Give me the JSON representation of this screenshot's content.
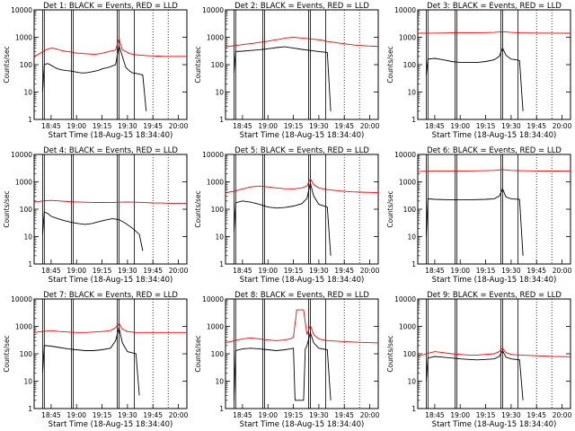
{
  "figure": {
    "ylabel": "Counts/sec",
    "ytick_labels": [
      "1",
      "10",
      "100",
      "1000",
      "10000"
    ],
    "xtick_labels_a": [
      "18:45",
      "19:00",
      "19:15",
      "19:30",
      "19:45",
      "20:00"
    ],
    "xtick_labels_b": [
      "18:45",
      "19:00",
      "19:15",
      "19:30",
      "19:45",
      "20:00"
    ],
    "xlabel": "Start Time (18-Aug-15 18:34:40)",
    "series_colors": {
      "events": "#000000",
      "lld": "#ff0000"
    }
  },
  "chart_data": [
    {
      "type": "line",
      "title": "Det 1: BLACK = Events, RED = LLD",
      "yscale": "log",
      "ylim": [
        1,
        10000
      ],
      "series": [
        {
          "color": "#ff0000",
          "x": [
            0,
            2,
            4,
            6,
            8,
            10,
            12,
            14,
            16,
            18,
            20,
            22,
            24,
            26,
            28,
            30,
            32,
            34,
            36,
            38,
            40,
            42,
            44,
            46,
            48,
            50,
            52,
            54,
            56,
            58,
            60,
            62,
            64,
            66,
            68,
            70,
            72,
            74,
            76,
            78,
            80,
            82,
            84,
            86,
            88,
            90
          ],
          "y": [
            200,
            230,
            270,
            320,
            370,
            400,
            390,
            360,
            330,
            310,
            300,
            290,
            270,
            260,
            260,
            250,
            250,
            240,
            240,
            250,
            260,
            280,
            300,
            320,
            340,
            900,
            350,
            300,
            260,
            240,
            230,
            225,
            220,
            215,
            210,
            210,
            205,
            205,
            200,
            200,
            200,
            200,
            200,
            200,
            200,
            200
          ]
        },
        {
          "color": "#000000",
          "x": [
            5,
            6,
            8,
            10,
            12,
            14,
            16,
            18,
            20,
            22,
            24,
            26,
            28,
            30,
            32,
            34,
            36,
            38,
            40,
            42,
            44,
            46,
            48,
            50,
            52,
            54,
            56,
            58,
            60,
            62,
            64,
            66
          ],
          "y": [
            10,
            100,
            110,
            95,
            80,
            70,
            65,
            62,
            60,
            58,
            55,
            52,
            50,
            50,
            52,
            55,
            58,
            62,
            70,
            75,
            80,
            90,
            100,
            500,
            200,
            80,
            60,
            50,
            48,
            45,
            42,
            2
          ]
        }
      ]
    },
    {
      "type": "line",
      "title": "Det 2: BLACK = Events, RED = LLD",
      "yscale": "log",
      "ylim": [
        1,
        10000
      ],
      "series": [
        {
          "color": "#ff0000",
          "x": [
            0,
            4,
            8,
            12,
            16,
            20,
            24,
            28,
            32,
            36,
            40,
            44,
            48,
            52,
            56,
            60,
            64,
            68,
            72,
            76,
            80,
            84,
            88,
            90
          ],
          "y": [
            450,
            480,
            520,
            560,
            600,
            650,
            700,
            780,
            850,
            950,
            1000,
            950,
            900,
            850,
            800,
            700,
            650,
            600,
            560,
            520,
            500,
            480,
            470,
            460
          ]
        },
        {
          "color": "#000000",
          "x": [
            5,
            6,
            10,
            15,
            20,
            25,
            30,
            35,
            40,
            45,
            50,
            55,
            60,
            62
          ],
          "y": [
            50,
            300,
            310,
            330,
            350,
            380,
            420,
            450,
            400,
            360,
            330,
            300,
            280,
            2
          ]
        }
      ]
    },
    {
      "type": "line",
      "title": "Det 3: BLACK = Events, RED = LLD",
      "yscale": "log",
      "ylim": [
        1,
        10000
      ],
      "series": [
        {
          "color": "#ff0000",
          "x": [
            0,
            10,
            20,
            30,
            40,
            45,
            50,
            55,
            60,
            70,
            80,
            90
          ],
          "y": [
            1400,
            1420,
            1450,
            1450,
            1480,
            1500,
            1600,
            1500,
            1450,
            1430,
            1420,
            1400
          ]
        },
        {
          "color": "#000000",
          "x": [
            5,
            6,
            10,
            15,
            20,
            25,
            30,
            35,
            40,
            45,
            48,
            50,
            52,
            55,
            58,
            60,
            62
          ],
          "y": [
            40,
            160,
            170,
            150,
            130,
            120,
            120,
            120,
            130,
            150,
            200,
            400,
            220,
            160,
            150,
            140,
            2
          ]
        }
      ]
    },
    {
      "type": "line",
      "title": "Det 4: BLACK = Events, RED = LLD",
      "yscale": "log",
      "ylim": [
        1,
        10000
      ],
      "series": [
        {
          "color": "#ff0000",
          "x": [
            0,
            5,
            10,
            15,
            20,
            25,
            30,
            35,
            40,
            45,
            50,
            55,
            60,
            65,
            70,
            75,
            80,
            85,
            90
          ],
          "y": [
            180,
            200,
            210,
            200,
            190,
            185,
            180,
            178,
            176,
            175,
            180,
            185,
            180,
            175,
            170,
            168,
            165,
            165,
            165
          ]
        },
        {
          "color": "#000000",
          "x": [
            5,
            6,
            8,
            10,
            14,
            18,
            22,
            26,
            30,
            34,
            38,
            42,
            46,
            50,
            54,
            58,
            62,
            64
          ],
          "y": [
            12,
            80,
            70,
            55,
            45,
            38,
            33,
            30,
            28,
            30,
            35,
            40,
            45,
            42,
            30,
            20,
            12,
            3
          ]
        }
      ]
    },
    {
      "type": "line",
      "title": "Det 5: BLACK = Events, RED = LLD",
      "yscale": "log",
      "ylim": [
        1,
        10000
      ],
      "series": [
        {
          "color": "#ff0000",
          "x": [
            0,
            5,
            10,
            15,
            20,
            25,
            30,
            35,
            40,
            45,
            48,
            50,
            52,
            55,
            60,
            65,
            70,
            75,
            80,
            85,
            90
          ],
          "y": [
            400,
            450,
            550,
            650,
            700,
            650,
            600,
            560,
            550,
            600,
            700,
            1300,
            800,
            600,
            520,
            480,
            450,
            430,
            420,
            410,
            400
          ]
        },
        {
          "color": "#000000",
          "x": [
            5,
            6,
            10,
            15,
            20,
            25,
            30,
            35,
            40,
            45,
            48,
            50,
            52,
            55,
            60,
            62
          ],
          "y": [
            15,
            170,
            200,
            180,
            150,
            120,
            110,
            115,
            130,
            160,
            250,
            900,
            300,
            150,
            120,
            2
          ]
        }
      ]
    },
    {
      "type": "line",
      "title": "Det 6: BLACK = Events, RED = LLD",
      "yscale": "log",
      "ylim": [
        1,
        10000
      ],
      "series": [
        {
          "color": "#ff0000",
          "x": [
            0,
            10,
            20,
            30,
            40,
            45,
            50,
            55,
            60,
            70,
            80,
            90
          ],
          "y": [
            2400,
            2450,
            2500,
            2500,
            2550,
            2600,
            2800,
            2600,
            2550,
            2500,
            2480,
            2450
          ]
        },
        {
          "color": "#000000",
          "x": [
            5,
            6,
            10,
            20,
            30,
            40,
            45,
            48,
            50,
            52,
            55,
            60,
            62
          ],
          "y": [
            10,
            240,
            230,
            220,
            220,
            230,
            240,
            300,
            550,
            280,
            240,
            230,
            2
          ]
        }
      ]
    },
    {
      "type": "line",
      "title": "Det 7: BLACK = Events, RED = LLD",
      "yscale": "log",
      "ylim": [
        1,
        10000
      ],
      "series": [
        {
          "color": "#ff0000",
          "x": [
            0,
            5,
            10,
            15,
            20,
            25,
            30,
            35,
            40,
            45,
            48,
            50,
            52,
            55,
            60,
            70,
            80,
            90
          ],
          "y": [
            600,
            650,
            700,
            650,
            620,
            600,
            600,
            620,
            650,
            700,
            900,
            1300,
            800,
            650,
            600,
            600,
            600,
            600
          ]
        },
        {
          "color": "#000000",
          "x": [
            5,
            6,
            10,
            15,
            20,
            25,
            30,
            35,
            40,
            45,
            48,
            50,
            52,
            55,
            60,
            62
          ],
          "y": [
            20,
            200,
            190,
            170,
            150,
            140,
            130,
            130,
            140,
            160,
            300,
            900,
            250,
            120,
            100,
            3
          ]
        }
      ]
    },
    {
      "type": "line",
      "title": "Det 8: BLACK = Events, RED = LLD",
      "yscale": "log",
      "ylim": [
        1,
        10000
      ],
      "series": [
        {
          "color": "#ff0000",
          "x": [
            0,
            5,
            10,
            15,
            20,
            25,
            30,
            35,
            38,
            40,
            42,
            45,
            46,
            48,
            50,
            52,
            55,
            60,
            70,
            80,
            90
          ],
          "y": [
            250,
            300,
            350,
            380,
            350,
            320,
            300,
            320,
            350,
            400,
            4000,
            4000,
            4000,
            500,
            1100,
            500,
            350,
            300,
            280,
            260,
            250
          ]
        },
        {
          "color": "#000000",
          "x": [
            5,
            6,
            10,
            15,
            20,
            25,
            30,
            35,
            38,
            40,
            41,
            46,
            47,
            48,
            50,
            52,
            55,
            60,
            62
          ],
          "y": [
            2,
            130,
            150,
            160,
            150,
            140,
            130,
            140,
            150,
            160,
            2,
            2,
            150,
            200,
            600,
            250,
            160,
            140,
            2
          ]
        }
      ]
    },
    {
      "type": "line",
      "title": "Det 9: BLACK = Events, RED = LLD",
      "yscale": "log",
      "ylim": [
        1,
        10000
      ],
      "series": [
        {
          "color": "#ff0000",
          "x": [
            0,
            5,
            10,
            15,
            20,
            25,
            30,
            35,
            40,
            45,
            48,
            50,
            52,
            55,
            60,
            70,
            80,
            90
          ],
          "y": [
            80,
            100,
            120,
            110,
            100,
            95,
            90,
            90,
            95,
            100,
            120,
            160,
            110,
            95,
            90,
            85,
            80,
            78
          ]
        },
        {
          "color": "#000000",
          "x": [
            5,
            6,
            10,
            15,
            20,
            25,
            30,
            35,
            40,
            45,
            48,
            50,
            52,
            55,
            60,
            62
          ],
          "y": [
            10,
            70,
            80,
            75,
            70,
            65,
            62,
            60,
            62,
            65,
            80,
            130,
            75,
            65,
            60,
            2
          ]
        }
      ]
    }
  ]
}
